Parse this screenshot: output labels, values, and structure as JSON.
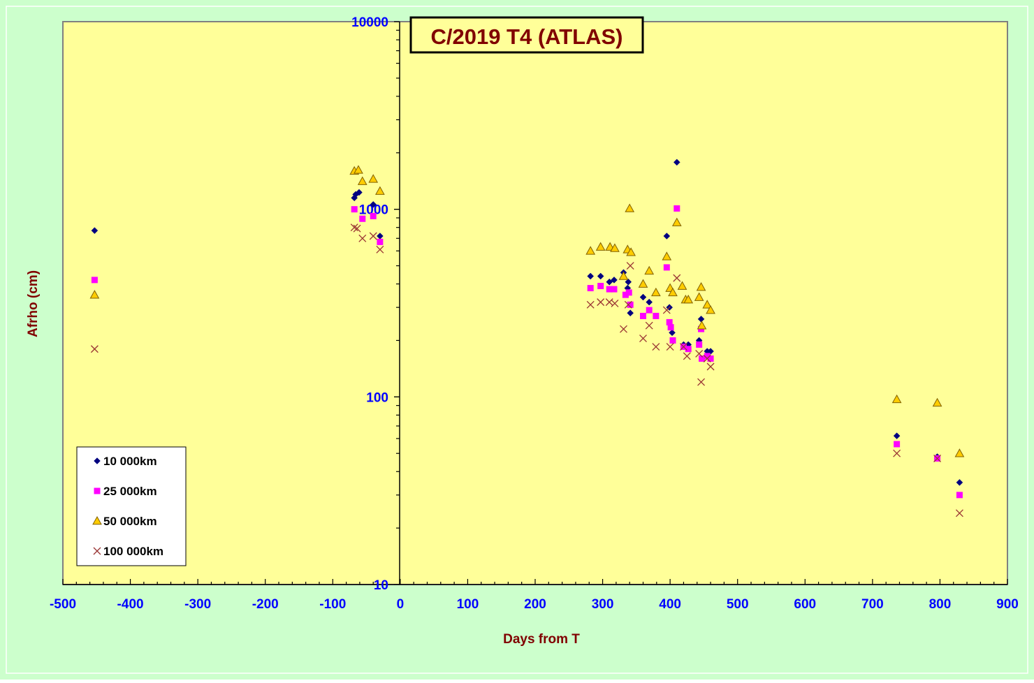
{
  "colors": {
    "background": "#ccffcc",
    "plot_area": "#ffff99",
    "tick_labels": "#0000ff",
    "axis_titles": "#800000",
    "title_text": "#800000",
    "series_10000": "#000080",
    "series_25000": "#ff00ff",
    "series_50000_fill": "#ffcc00",
    "series_50000_stroke": "#806000",
    "series_100000": "#993333"
  },
  "chart_data": {
    "type": "scatter",
    "title": "C/2019 T4 (ATLAS)",
    "xlabel": "Days from T",
    "ylabel": "Afrho (cm)",
    "xlim": [
      -500,
      900
    ],
    "ylim": [
      10,
      10000
    ],
    "y_scale": "log",
    "grid": false,
    "legend_position": "bottom-left",
    "x_ticks": [
      "-500",
      "-400",
      "-300",
      "-200",
      "-100",
      "0",
      "100",
      "200",
      "300",
      "400",
      "500",
      "600",
      "700",
      "800",
      "900"
    ],
    "y_ticks": [
      "10",
      "100",
      "1000",
      "10000"
    ],
    "series": [
      {
        "name": "10 000km",
        "marker": "diamond",
        "points": [
          [
            -453,
            770
          ],
          [
            -68,
            1150
          ],
          [
            -66,
            1200
          ],
          [
            -61,
            1230
          ],
          [
            -40,
            1060
          ],
          [
            -30,
            720
          ],
          [
            282,
            440
          ],
          [
            297,
            440
          ],
          [
            310,
            410
          ],
          [
            317,
            420
          ],
          [
            331,
            460
          ],
          [
            337,
            380
          ],
          [
            338,
            410
          ],
          [
            341,
            280
          ],
          [
            360,
            340
          ],
          [
            369,
            320
          ],
          [
            395,
            720
          ],
          [
            399,
            300
          ],
          [
            403,
            220
          ],
          [
            410,
            1780
          ],
          [
            420,
            190
          ],
          [
            427,
            190
          ],
          [
            443,
            200
          ],
          [
            446,
            260
          ],
          [
            455,
            175
          ],
          [
            460,
            175
          ],
          [
            736,
            62
          ],
          [
            796,
            48
          ],
          [
            829,
            35
          ]
        ]
      },
      {
        "name": "25 000km",
        "marker": "square",
        "points": [
          [
            -453,
            420
          ],
          [
            -68,
            1000
          ],
          [
            -56,
            890
          ],
          [
            -40,
            920
          ],
          [
            -30,
            670
          ],
          [
            282,
            380
          ],
          [
            297,
            390
          ],
          [
            310,
            375
          ],
          [
            317,
            375
          ],
          [
            334,
            350
          ],
          [
            339,
            360
          ],
          [
            341,
            310
          ],
          [
            360,
            270
          ],
          [
            369,
            290
          ],
          [
            379,
            270
          ],
          [
            395,
            490
          ],
          [
            399,
            250
          ],
          [
            401,
            235
          ],
          [
            404,
            200
          ],
          [
            410,
            1010
          ],
          [
            420,
            185
          ],
          [
            427,
            180
          ],
          [
            443,
            190
          ],
          [
            446,
            230
          ],
          [
            447,
            160
          ],
          [
            455,
            165
          ],
          [
            460,
            160
          ],
          [
            736,
            56
          ],
          [
            796,
            47
          ],
          [
            829,
            30
          ]
        ]
      },
      {
        "name": "50 000km",
        "marker": "triangle",
        "points": [
          [
            -453,
            350
          ],
          [
            -68,
            1600
          ],
          [
            -62,
            1620
          ],
          [
            -56,
            1410
          ],
          [
            -40,
            1450
          ],
          [
            -30,
            1250
          ],
          [
            282,
            600
          ],
          [
            297,
            630
          ],
          [
            311,
            630
          ],
          [
            318,
            620
          ],
          [
            331,
            440
          ],
          [
            337,
            610
          ],
          [
            340,
            1010
          ],
          [
            342,
            590
          ],
          [
            360,
            400
          ],
          [
            369,
            470
          ],
          [
            379,
            360
          ],
          [
            395,
            560
          ],
          [
            400,
            380
          ],
          [
            404,
            360
          ],
          [
            410,
            850
          ],
          [
            418,
            390
          ],
          [
            423,
            330
          ],
          [
            427,
            330
          ],
          [
            443,
            340
          ],
          [
            446,
            385
          ],
          [
            447,
            240
          ],
          [
            455,
            310
          ],
          [
            460,
            290
          ],
          [
            736,
            97
          ],
          [
            796,
            93
          ],
          [
            829,
            50
          ]
        ]
      },
      {
        "name": "100 000km",
        "marker": "cross",
        "points": [
          [
            -453,
            180
          ],
          [
            -68,
            800
          ],
          [
            -64,
            790
          ],
          [
            -56,
            700
          ],
          [
            -40,
            720
          ],
          [
            -30,
            610
          ],
          [
            282,
            310
          ],
          [
            297,
            320
          ],
          [
            310,
            320
          ],
          [
            318,
            315
          ],
          [
            331,
            230
          ],
          [
            338,
            310
          ],
          [
            341,
            500
          ],
          [
            360,
            205
          ],
          [
            369,
            240
          ],
          [
            379,
            185
          ],
          [
            395,
            290
          ],
          [
            400,
            185
          ],
          [
            410,
            430
          ],
          [
            420,
            185
          ],
          [
            425,
            165
          ],
          [
            443,
            170
          ],
          [
            446,
            120
          ],
          [
            455,
            160
          ],
          [
            460,
            145
          ],
          [
            736,
            50
          ],
          [
            796,
            47
          ],
          [
            829,
            24
          ]
        ]
      }
    ]
  }
}
